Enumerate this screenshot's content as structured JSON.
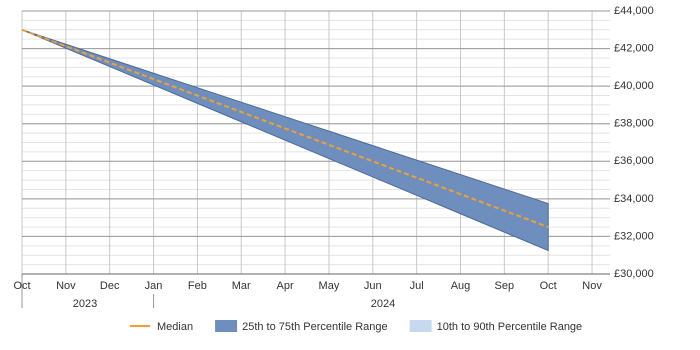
{
  "chart_data": {
    "type": "band-line",
    "categories": [
      "Oct",
      "Nov",
      "Dec",
      "Jan",
      "Feb",
      "Mar",
      "Apr",
      "May",
      "Jun",
      "Jul",
      "Aug",
      "Sep",
      "Oct",
      "Nov"
    ],
    "years": [
      "2023",
      "2024"
    ],
    "series": [
      {
        "name": "10th to 90th Percentile Range",
        "kind": "band",
        "color": "#c6d9ee",
        "low": [
          43000,
          42021,
          41042,
          40063,
          39083,
          38104,
          37125,
          36146,
          35167,
          34188,
          33208,
          32229,
          31250,
          null
        ],
        "high": [
          43000,
          42229,
          41458,
          40688,
          39917,
          39146,
          38375,
          37604,
          36833,
          36063,
          35292,
          34521,
          33750,
          null
        ]
      },
      {
        "name": "25th to 75th Percentile Range",
        "kind": "band",
        "color": "#6e8fbd",
        "low": [
          43000,
          42021,
          41042,
          40063,
          39083,
          38104,
          37125,
          36146,
          35167,
          34188,
          33208,
          32229,
          31250,
          null
        ],
        "high": [
          43000,
          42229,
          41458,
          40688,
          39917,
          39146,
          38375,
          37604,
          36833,
          36063,
          35292,
          34521,
          33750,
          null
        ]
      },
      {
        "name": "Median",
        "kind": "line",
        "color": "#f0a030",
        "values": [
          43000,
          42125,
          41250,
          40375,
          39500,
          38625,
          37750,
          36875,
          36000,
          35125,
          34250,
          33375,
          32500,
          null
        ]
      }
    ],
    "ylim": [
      30000,
      44000
    ],
    "yticks": [
      {
        "value": 30000,
        "label": "£30,000"
      },
      {
        "value": 32000,
        "label": "£32,000"
      },
      {
        "value": 34000,
        "label": "£34,000"
      },
      {
        "value": 36000,
        "label": "£36,000"
      },
      {
        "value": 38000,
        "label": "£38,000"
      },
      {
        "value": 40000,
        "label": "£40,000"
      },
      {
        "value": 42000,
        "label": "£42,000"
      },
      {
        "value": 44000,
        "label": "£44,000"
      }
    ],
    "grid": true
  }
}
